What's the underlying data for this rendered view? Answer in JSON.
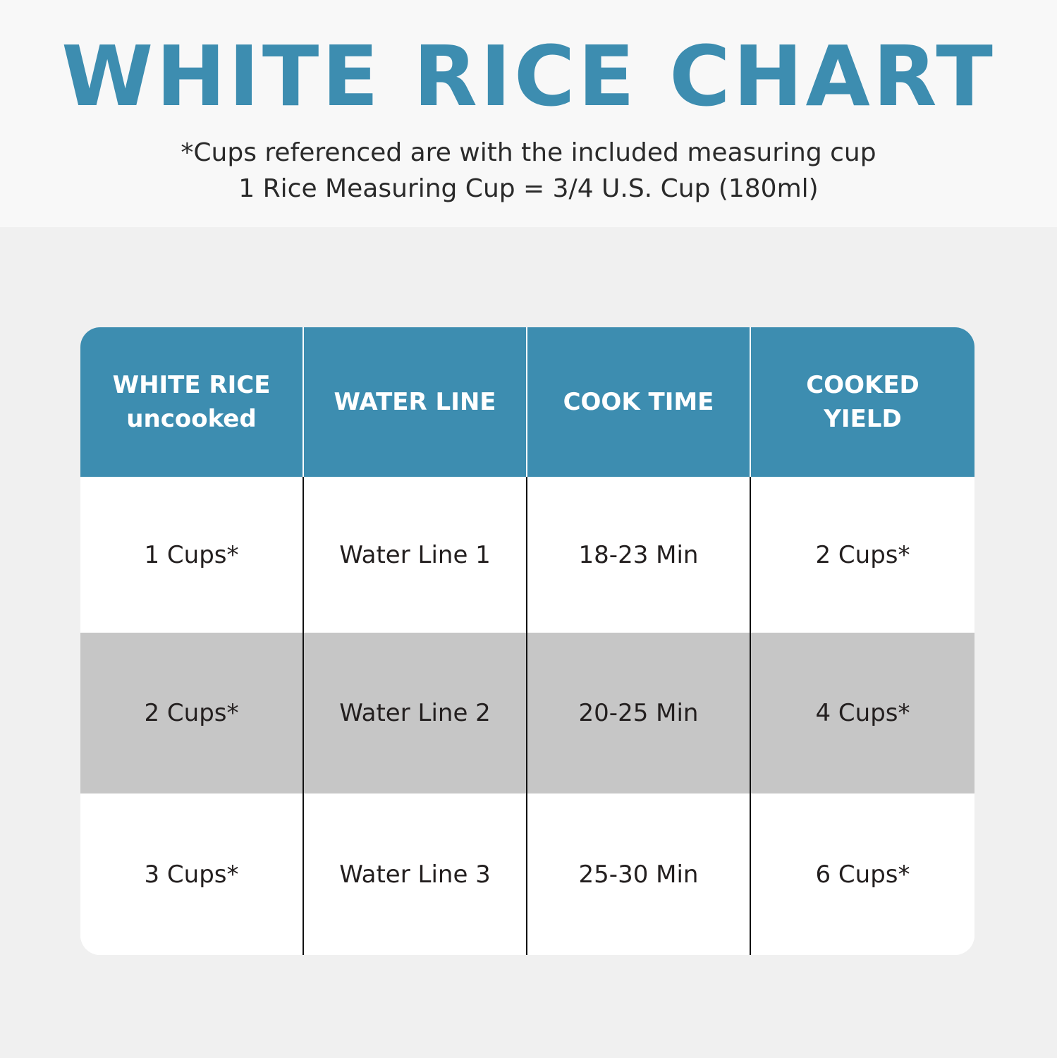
{
  "title": "WHITE RICE CHART",
  "subtitle_lines": [
    "*Cups referenced are with the included measuring cup",
    "1 Rice Measuring Cup = 3/4 U.S. Cup (180ml)"
  ],
  "colors": {
    "accent": "#3d8db0",
    "alt_row": "#c6c6c6",
    "text": "#231f1f"
  },
  "table": {
    "headers": [
      {
        "line1": "WHITE RICE",
        "line2": "uncooked"
      },
      {
        "line1": "WATER LINE",
        "line2": ""
      },
      {
        "line1": "COOK TIME",
        "line2": ""
      },
      {
        "line1": "COOKED",
        "line2": "YIELD"
      }
    ],
    "rows": [
      [
        "1 Cups*",
        "Water Line 1",
        "18-23 Min",
        "2 Cups*"
      ],
      [
        "2 Cups*",
        "Water Line 2",
        "20-25 Min",
        "4 Cups*"
      ],
      [
        "3 Cups*",
        "Water Line 3",
        "25-30 Min",
        "6 Cups*"
      ]
    ]
  }
}
